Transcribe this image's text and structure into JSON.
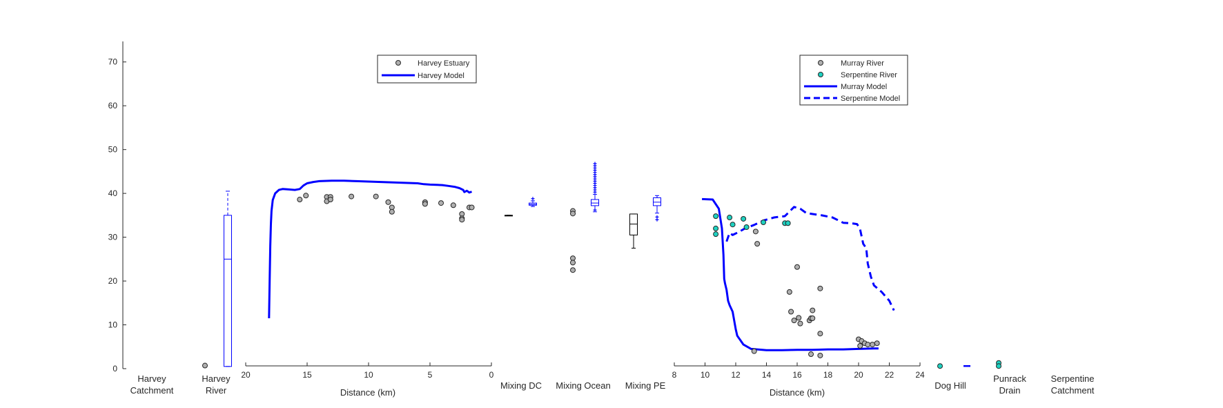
{
  "chart_data": {
    "type": "scatter",
    "y_axis": {
      "ylim": [
        0,
        75
      ],
      "ticks": [
        0,
        10,
        20,
        30,
        40,
        50,
        60,
        70
      ]
    },
    "x_left": {
      "label": "Distance (km)",
      "xlim": [
        20,
        0
      ],
      "reversed": true,
      "ticks": [
        20,
        15,
        10,
        5,
        0
      ]
    },
    "x_right": {
      "label": "Distance (km)",
      "xlim": [
        8,
        24
      ],
      "ticks": [
        8,
        10,
        12,
        14,
        16,
        18,
        20,
        22,
        24
      ]
    },
    "categories": {
      "harvey_catchment": [
        "Harvey",
        "Catchment"
      ],
      "harvey_river": [
        "Harvey",
        "River"
      ],
      "mixing_dc": [
        "Mixing DC"
      ],
      "mixing_ocean": [
        "Mixing Ocean"
      ],
      "mixing_pe": [
        "Mixing PE"
      ],
      "dog_hill": [
        "Dog Hill"
      ],
      "punrack_drain": [
        "Punrack",
        "Drain"
      ],
      "serpentine_catchment": [
        "Serpentine",
        "Catchment"
      ]
    },
    "legends": {
      "left": [
        "Harvey Estuary",
        "Harvey Model"
      ],
      "right": [
        "Murray River",
        "Serpentine River",
        "Murray Model",
        "Serpentine Model"
      ]
    },
    "colors": {
      "model": "#0000ff",
      "obs_grey": "#b0b0b0",
      "obs_cyan": "#1fd1c1",
      "box_black": "#000000"
    },
    "boxes": [
      {
        "category": "harvey_river",
        "color": "model",
        "whisker_low": 0.5,
        "q1": 0.5,
        "median": 25,
        "q3": 35,
        "whisker_high": 40.5,
        "whisker_high_dashed": true,
        "outliers": []
      },
      {
        "category": "mixing_dc",
        "color": "box_black",
        "whisker_low": 35,
        "q1": 35,
        "median": 35,
        "q3": 35,
        "whisker_high": 35,
        "outliers": []
      },
      {
        "category": "mixing_dc_model",
        "color": "model",
        "whisker_low": 37,
        "q1": 37.3,
        "median": 37.5,
        "q3": 37.8,
        "whisker_high": 38.3,
        "outliers": [
          38.8
        ]
      },
      {
        "category": "mixing_ocean_model",
        "color": "model",
        "whisker_low": 35.8,
        "q1": 37.2,
        "median": 37.8,
        "q3": 38.6,
        "whisker_high": 39.8,
        "outliers": [
          36.2,
          40.3,
          40.8,
          41.3,
          41.8,
          42.3,
          42.8,
          43.3,
          43.8,
          44.3,
          44.8,
          45.3,
          45.8,
          46.3,
          46.8
        ]
      },
      {
        "category": "mixing_pe",
        "color": "box_black",
        "whisker_low": 27.5,
        "q1": 30.5,
        "median": 33,
        "q3": 35.3,
        "whisker_high": 35.3,
        "outliers": []
      },
      {
        "category": "mixing_pe_model",
        "color": "model",
        "whisker_low": 35.5,
        "q1": 37.2,
        "median": 38,
        "q3": 39,
        "whisker_high": 39.5,
        "outliers": [
          34,
          34.6
        ]
      }
    ],
    "category_points": [
      {
        "category": "harvey_river",
        "color": "obs_grey",
        "values": [
          0.7
        ]
      },
      {
        "category": "mixing_ocean",
        "color": "obs_grey",
        "values": [
          36,
          35.4,
          25.2,
          24.2,
          22.5
        ]
      },
      {
        "category": "dog_hill",
        "color": "obs_cyan",
        "values": [
          0.6
        ]
      },
      {
        "category": "punrack_drain",
        "color": "obs_cyan",
        "values": [
          1.3,
          0.6
        ]
      }
    ],
    "series": [
      {
        "name": "Harvey Estuary",
        "panel": "left",
        "kind": "markers",
        "color": "obs_grey",
        "x": [
          15.6,
          15.1,
          13.4,
          13.4,
          13.1,
          13.1,
          11.4,
          9.4,
          8.4,
          8.1,
          8.1,
          5.4,
          5.4,
          4.1,
          3.1,
          2.4,
          2.4,
          2.4,
          1.8,
          1.6
        ],
        "y": [
          38.6,
          39.5,
          39.2,
          38.2,
          39.2,
          38.6,
          39.3,
          39.3,
          38.0,
          36.8,
          35.8,
          38.0,
          37.6,
          37.8,
          37.3,
          35.3,
          34.3,
          34.0,
          36.8,
          36.8
        ]
      },
      {
        "name": "Harvey Model",
        "panel": "left",
        "kind": "line",
        "dash": "solid",
        "color": "model",
        "x": [
          18.1,
          18.05,
          18.0,
          17.95,
          17.9,
          17.8,
          17.6,
          17.3,
          17.0,
          16.5,
          16.0,
          15.6,
          15.3,
          15.0,
          14.5,
          14.0,
          13.0,
          12.0,
          11.0,
          10.0,
          9.0,
          8.0,
          7.0,
          6.0,
          5.5,
          5.0,
          4.0,
          3.5,
          3.0,
          2.6,
          2.3,
          2.2,
          2.0,
          1.8,
          1.6
        ],
        "y": [
          11.5,
          20,
          28,
          33,
          36,
          38.5,
          40.0,
          40.8,
          41.0,
          40.9,
          40.8,
          41.0,
          41.8,
          42.3,
          42.6,
          42.8,
          42.9,
          42.9,
          42.8,
          42.7,
          42.6,
          42.5,
          42.4,
          42.3,
          42.1,
          42.0,
          41.9,
          41.7,
          41.5,
          41.2,
          40.8,
          40.3,
          40.6,
          40.2,
          40.4
        ]
      },
      {
        "name": "Murray River",
        "panel": "right",
        "kind": "markers",
        "color": "obs_grey",
        "x": [
          13.3,
          13.4,
          13.2,
          16.0,
          15.5,
          15.6,
          15.8,
          16.1,
          16.2,
          16.8,
          16.9,
          17.0,
          17.0,
          17.5,
          17.5,
          16.9,
          17.5,
          20.0,
          20.2,
          20.4,
          20.6,
          20.9,
          21.2,
          20.1
        ],
        "y": [
          31.3,
          28.5,
          4.0,
          23.2,
          17.5,
          13.0,
          11.0,
          11.6,
          10.3,
          11.0,
          11.5,
          13.3,
          11.5,
          18.3,
          8.0,
          3.3,
          3.0,
          6.7,
          6.3,
          5.8,
          5.5,
          5.5,
          5.8,
          5.2
        ]
      },
      {
        "name": "Serpentine River",
        "panel": "right",
        "kind": "markers",
        "color": "obs_cyan",
        "x": [
          10.7,
          10.7,
          10.7,
          11.6,
          11.8,
          12.5,
          12.7,
          13.8,
          15.2,
          15.4
        ],
        "y": [
          34.8,
          32.0,
          30.7,
          34.5,
          32.9,
          34.2,
          32.3,
          33.4,
          33.2,
          33.2
        ]
      },
      {
        "name": "Murray Model",
        "panel": "right",
        "kind": "line",
        "dash": "solid",
        "color": "model",
        "x": [
          9.8,
          10.5,
          10.9,
          11.1,
          11.2,
          11.25,
          11.3,
          11.4,
          11.5,
          11.6,
          11.8,
          12.0,
          12.1,
          12.2,
          12.3,
          12.5,
          13.0,
          14.0,
          15.0,
          16.0,
          17.0,
          18.0,
          19.0,
          20.0,
          21.0,
          21.3
        ],
        "y": [
          38.7,
          38.6,
          36.5,
          32.0,
          26.0,
          20.5,
          19.5,
          18.0,
          15.5,
          14.5,
          13.0,
          9.0,
          7.5,
          7.0,
          6.5,
          5.5,
          4.5,
          4.2,
          4.2,
          4.3,
          4.3,
          4.4,
          4.4,
          4.5,
          4.6,
          4.6
        ]
      },
      {
        "name": "Serpentine Model",
        "panel": "right",
        "kind": "line",
        "dash": "dashed",
        "color": "model",
        "x": [
          11.4,
          11.6,
          11.8,
          12.2,
          12.6,
          13.2,
          13.8,
          14.5,
          15.2,
          15.8,
          16.2,
          16.6,
          17.0,
          17.6,
          18.3,
          19.0,
          19.5,
          19.9,
          20.1,
          20.3,
          20.5,
          20.6,
          20.8,
          21.0,
          21.5,
          22.0,
          22.3
        ],
        "y": [
          29.0,
          31.0,
          30.5,
          31.2,
          32.0,
          32.8,
          33.8,
          34.5,
          34.8,
          36.9,
          36.5,
          35.5,
          35.3,
          35.0,
          34.5,
          33.3,
          33.2,
          33.0,
          31.8,
          28.5,
          27.5,
          24.0,
          21.0,
          19.0,
          17.5,
          15.5,
          13.3
        ]
      }
    ]
  }
}
